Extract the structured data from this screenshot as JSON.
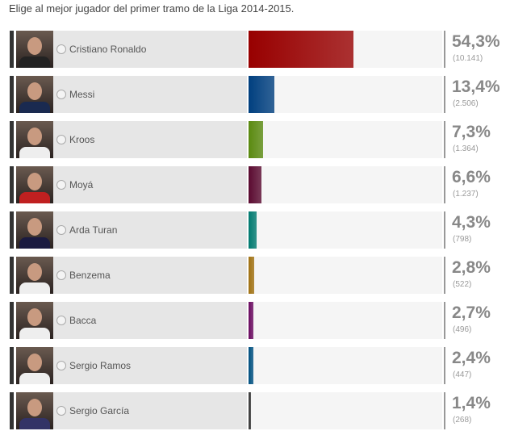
{
  "title": "Elige al mejor jugador del primer tramo de la Liga 2014-2015.",
  "options": [
    {
      "name": "Cristiano Ronaldo",
      "percent": "54,3%",
      "value": 54.3,
      "votes": "(10.141)",
      "color": "#980000",
      "shirt": "#222"
    },
    {
      "name": "Messi",
      "percent": "13,4%",
      "value": 13.4,
      "votes": "(2.506)",
      "color": "#003f7f",
      "shirt": "#1a2a50"
    },
    {
      "name": "Kroos",
      "percent": "7,3%",
      "value": 7.3,
      "votes": "(1.364)",
      "color": "#5a8a10",
      "shirt": "#eee"
    },
    {
      "name": "Moyá",
      "percent": "6,6%",
      "value": 6.6,
      "votes": "(1.237)",
      "color": "#5a0a30",
      "shirt": "#c02020"
    },
    {
      "name": "Arda Turan",
      "percent": "4,3%",
      "value": 4.3,
      "votes": "(798)",
      "color": "#007a70",
      "shirt": "#1a1a40"
    },
    {
      "name": "Benzema",
      "percent": "2,8%",
      "value": 2.8,
      "votes": "(522)",
      "color": "#a07010",
      "shirt": "#eee"
    },
    {
      "name": "Bacca",
      "percent": "2,7%",
      "value": 2.7,
      "votes": "(496)",
      "color": "#6a0a60",
      "shirt": "#eee"
    },
    {
      "name": "Sergio Ramos",
      "percent": "2,4%",
      "value": 2.4,
      "votes": "(447)",
      "color": "#005080",
      "shirt": "#eee"
    },
    {
      "name": "Sergio García",
      "percent": "1,4%",
      "value": 1.4,
      "votes": "(268)",
      "color": "#333333",
      "shirt": "#336"
    }
  ]
}
